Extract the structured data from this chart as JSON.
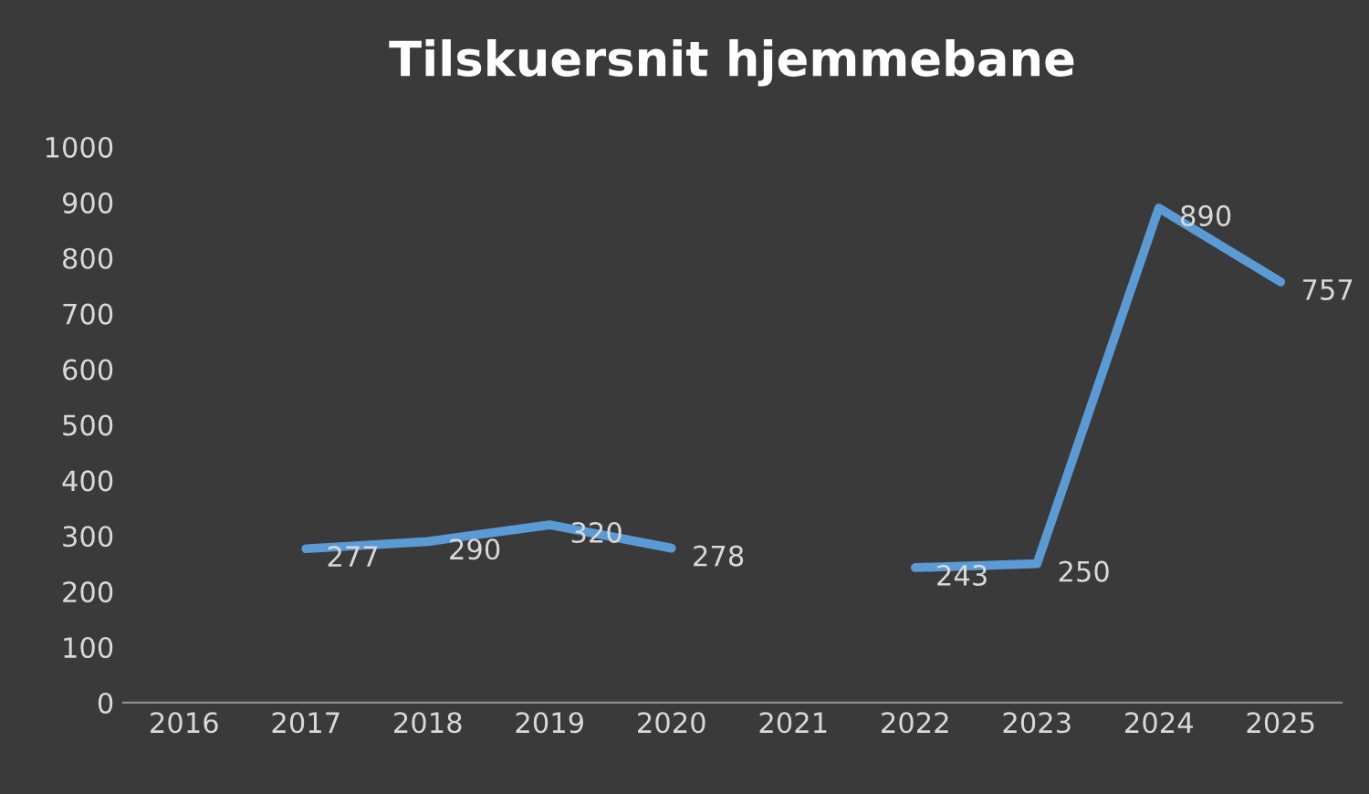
{
  "chart_data": {
    "type": "line",
    "title": "Tilskuersnit hjemmebane",
    "categories": [
      "2016",
      "2017",
      "2018",
      "2019",
      "2020",
      "2021",
      "2022",
      "2023",
      "2024",
      "2025"
    ],
    "series": [
      {
        "color": "#5b9bd5",
        "values": [
          null,
          277,
          290,
          320,
          278,
          null,
          243,
          250,
          890,
          757
        ]
      }
    ],
    "ylim": [
      0,
      1000
    ],
    "yticks": [
      0,
      100,
      200,
      300,
      400,
      500,
      600,
      700,
      800,
      900,
      1000
    ],
    "data_labels": true,
    "grid": false,
    "legend": false,
    "marker": "none",
    "line_style": "solid"
  }
}
